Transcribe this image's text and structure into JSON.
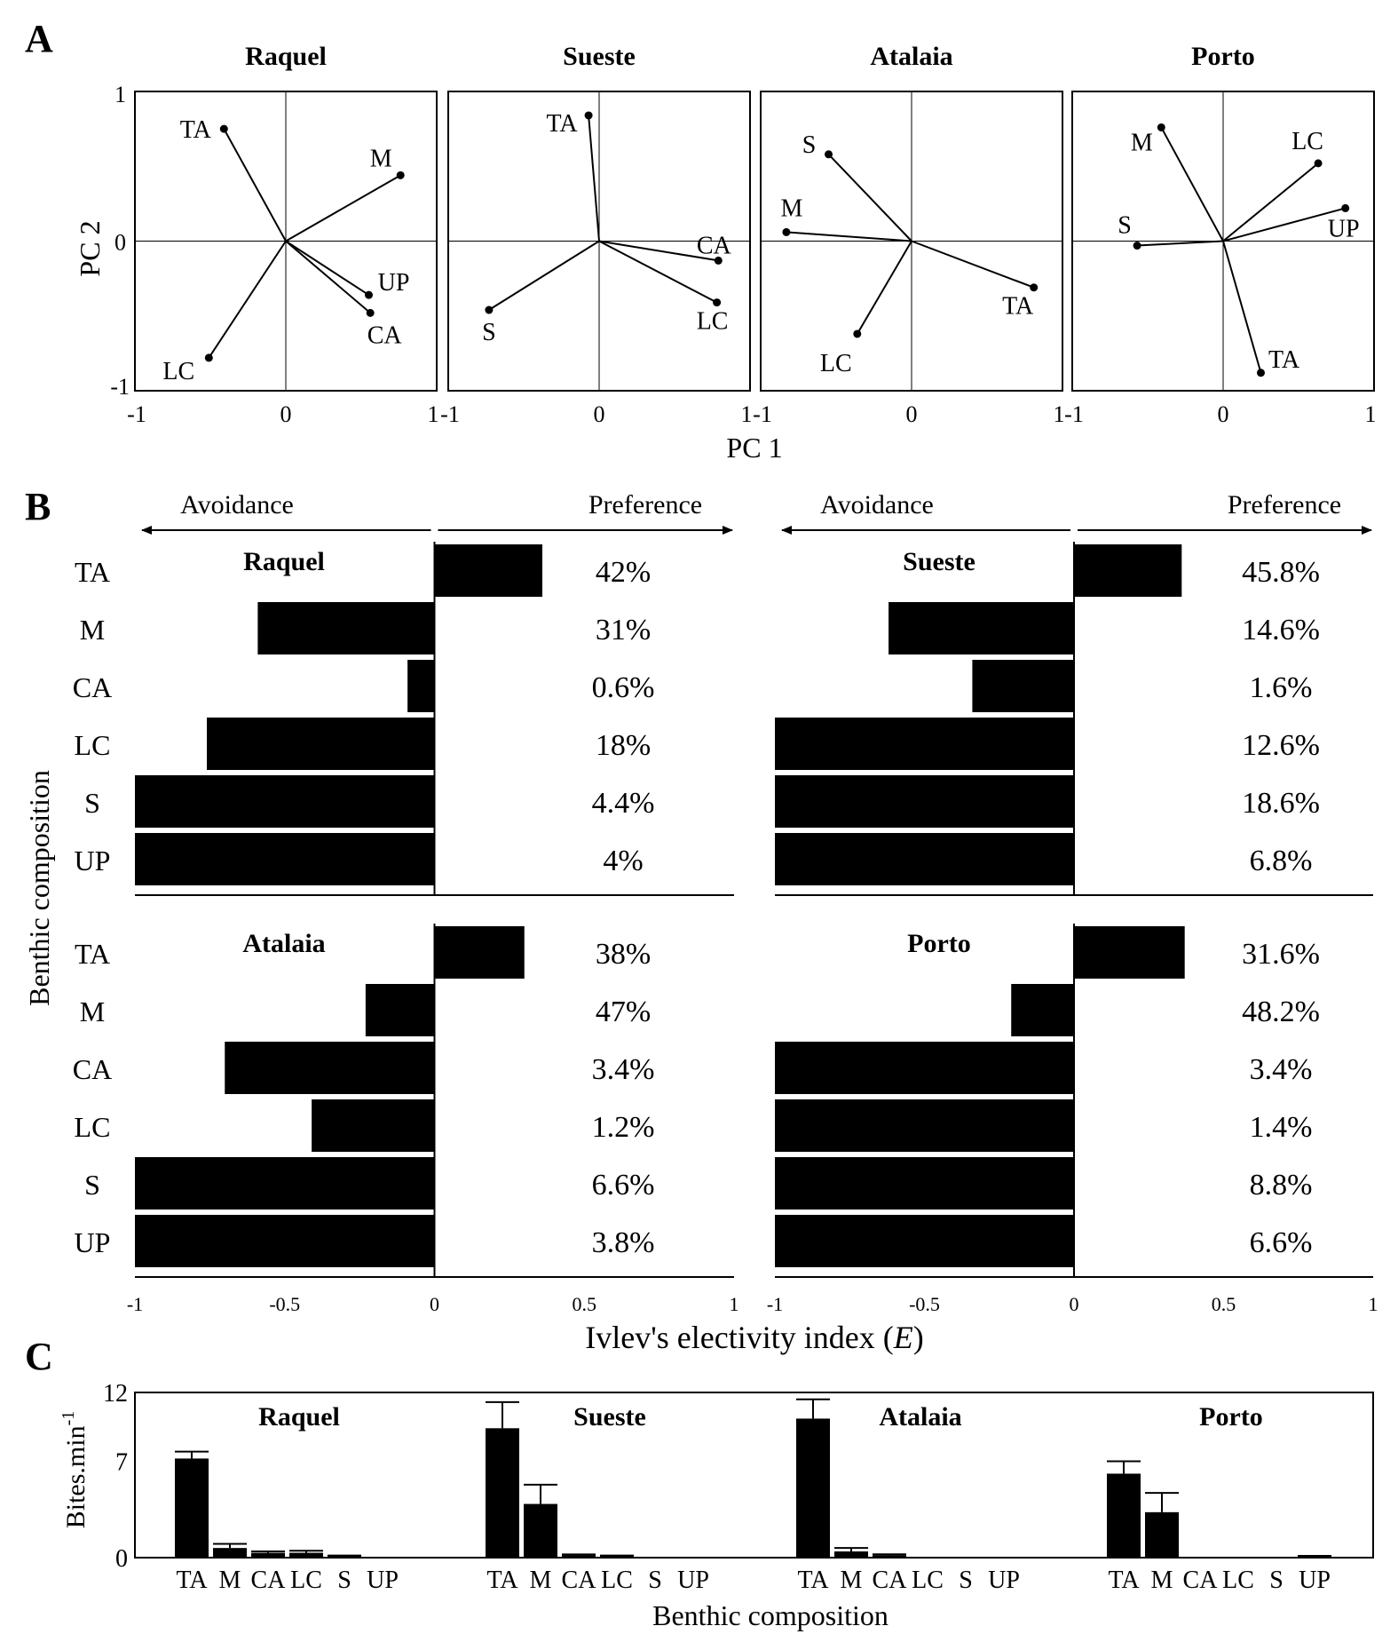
{
  "panel_labels": [
    "A",
    "B",
    "C"
  ],
  "chart_data": [
    {
      "panel": "A",
      "type": "scatter",
      "xlabel": "PC 1",
      "ylabel": "PC 2",
      "xlim": [
        -1,
        1
      ],
      "ylim": [
        -1,
        1
      ],
      "xticks": [
        "-1",
        "0",
        "1"
      ],
      "yticks": [
        "1",
        "0",
        "-1"
      ],
      "sites": [
        {
          "title": "Raquel",
          "points": [
            {
              "label": "TA",
              "x": -0.41,
              "y": 0.75
            },
            {
              "label": "M",
              "x": 0.76,
              "y": 0.44
            },
            {
              "label": "UP",
              "x": 0.55,
              "y": -0.36
            },
            {
              "label": "CA",
              "x": 0.56,
              "y": -0.48
            },
            {
              "label": "LC",
              "x": -0.51,
              "y": -0.78
            }
          ]
        },
        {
          "title": "Sueste",
          "points": [
            {
              "label": "TA",
              "x": -0.07,
              "y": 0.84
            },
            {
              "label": "CA",
              "x": 0.79,
              "y": -0.13
            },
            {
              "label": "LC",
              "x": 0.78,
              "y": -0.41
            },
            {
              "label": "S",
              "x": -0.73,
              "y": -0.46
            }
          ]
        },
        {
          "title": "Atalaia",
          "points": [
            {
              "label": "S",
              "x": -0.55,
              "y": 0.58
            },
            {
              "label": "M",
              "x": -0.83,
              "y": 0.06
            },
            {
              "label": "TA",
              "x": 0.81,
              "y": -0.31
            },
            {
              "label": "LC",
              "x": -0.36,
              "y": -0.62
            }
          ]
        },
        {
          "title": "Porto",
          "points": [
            {
              "label": "M",
              "x": -0.41,
              "y": 0.76
            },
            {
              "label": "LC",
              "x": 0.63,
              "y": 0.52
            },
            {
              "label": "UP",
              "x": 0.81,
              "y": 0.22
            },
            {
              "label": "S",
              "x": -0.57,
              "y": -0.03
            },
            {
              "label": "TA",
              "x": 0.25,
              "y": -0.88
            }
          ]
        }
      ]
    },
    {
      "panel": "B",
      "type": "bar",
      "orientation": "horizontal",
      "xlabel": "Ivlev's electivity index (",
      "xlabel_italic": "E",
      "xlabel_end": ")",
      "ylabel": "Benthic composition",
      "avoidance": "Avoidance",
      "preference": "Preference",
      "xlim": [
        -1,
        1
      ],
      "xticks": [
        "-1",
        "-0.5",
        "0",
        "0.5",
        "1"
      ],
      "categories": [
        "TA",
        "M",
        "CA",
        "LC",
        "S",
        "UP"
      ],
      "sites": [
        {
          "title": "Raquel",
          "values": [
            0.36,
            -0.59,
            -0.09,
            -0.76,
            -1.0,
            -1.0
          ],
          "percent_labels": [
            "42%",
            "31%",
            "0.6%",
            "18%",
            "4.4%",
            "4%"
          ]
        },
        {
          "title": "Sueste",
          "values": [
            0.36,
            -0.62,
            -0.34,
            -1.0,
            -1.0,
            -1.0
          ],
          "percent_labels": [
            "45.8%",
            "14.6%",
            "1.6%",
            "12.6%",
            "18.6%",
            "6.8%"
          ]
        },
        {
          "title": "Atalaia",
          "values": [
            0.3,
            -0.23,
            -0.7,
            -0.41,
            -1.0,
            -1.0
          ],
          "percent_labels": [
            "38%",
            "47%",
            "3.4%",
            "1.2%",
            "6.6%",
            "3.8%"
          ]
        },
        {
          "title": "Porto",
          "values": [
            0.37,
            -0.21,
            -1.0,
            -1.0,
            -1.0,
            -1.0
          ],
          "percent_labels": [
            "31.6%",
            "48.2%",
            "3.4%",
            "1.4%",
            "8.8%",
            "6.6%"
          ]
        }
      ]
    },
    {
      "panel": "C",
      "type": "bar",
      "ylabel": "Bites.min",
      "ylabel_sup": "-1",
      "xlabel": "Benthic composition",
      "ylim": [
        0,
        12
      ],
      "yticks": [
        "12",
        "7",
        "0"
      ],
      "categories": [
        "TA",
        "M",
        "CA",
        "LC",
        "S",
        "UP"
      ],
      "sites": [
        {
          "title": "Raquel",
          "values": [
            7.2,
            0.7,
            0.35,
            0.35,
            0.1,
            0
          ],
          "errors": [
            0.5,
            0.3,
            0.1,
            0.15,
            0.05,
            0
          ]
        },
        {
          "title": "Sueste",
          "values": [
            9.4,
            3.9,
            0.18,
            0.1,
            0,
            0
          ],
          "errors": [
            1.9,
            1.4,
            0.05,
            0.05,
            0,
            0
          ]
        },
        {
          "title": "Atalaia",
          "values": [
            10.1,
            0.45,
            0.18,
            0,
            0,
            0
          ],
          "errors": [
            1.4,
            0.25,
            0.06,
            0,
            0,
            0
          ]
        },
        {
          "title": "Porto",
          "values": [
            6.1,
            3.3,
            0,
            0,
            0,
            0.1
          ],
          "errors": [
            0.9,
            1.4,
            0,
            0,
            0,
            0.03
          ]
        }
      ]
    }
  ]
}
